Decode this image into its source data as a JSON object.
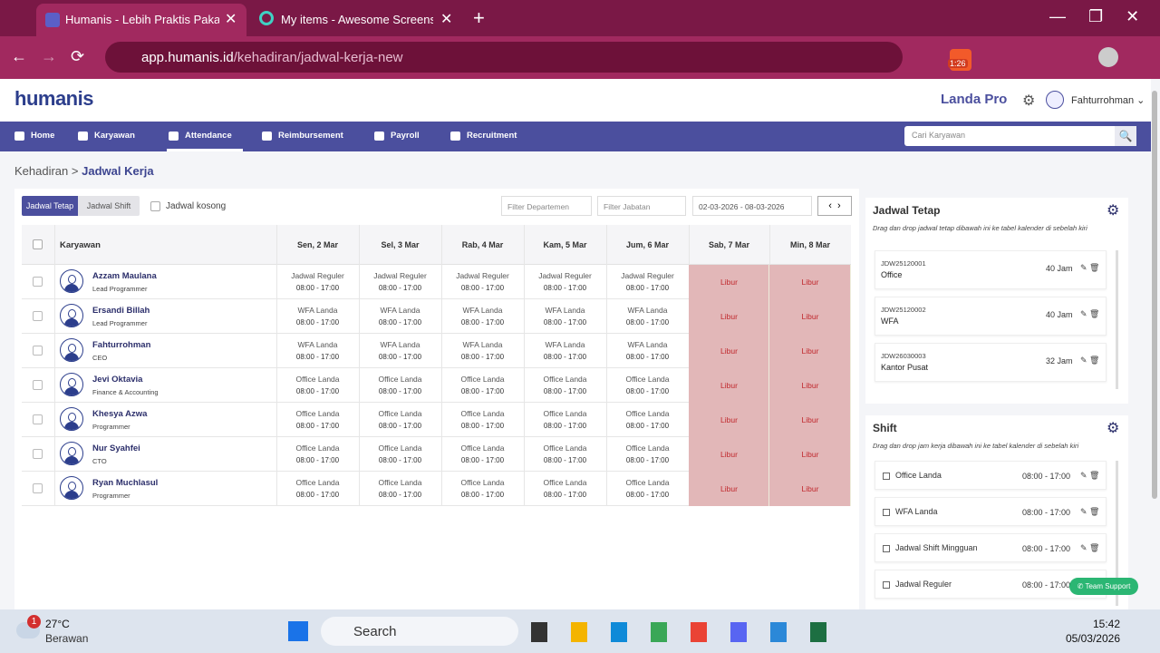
{
  "browser": {
    "tabs": [
      "Humanis - Lebih Praktis Pakai H",
      "My items - Awesome Screensho"
    ],
    "url_host": "app.humanis.id",
    "url_path": "/kehadiran/jadwal-kerja-new",
    "extension_badge": "1:26"
  },
  "header": {
    "logo": "humanis",
    "company": "Landa Pro",
    "user": "Fahturrohman"
  },
  "nav": {
    "items": [
      "Home",
      "Karyawan",
      "Attendance",
      "Reimbursement",
      "Payroll",
      "Recruitment"
    ],
    "search_placeholder": "Cari Karyawan"
  },
  "breadcrumb": [
    "Kehadiran",
    "Jadwal Kerja"
  ],
  "toolbar": {
    "tabs": [
      "Jadwal Tetap",
      "Jadwal Shift"
    ],
    "checkbox": "Jadwal kosong",
    "filters": [
      "Filter Departemen",
      "Filter Jabatan"
    ],
    "date_range": "02-03-2026 - 08-03-2026"
  },
  "table": {
    "columns": [
      "Karyawan",
      "Sen, 2 Mar",
      "Sel, 3 Mar",
      "Rab, 4 Mar",
      "Kam, 5 Mar",
      "Jum, 6 Mar",
      "Sab, 7 Mar",
      "Min, 8 Mar"
    ],
    "rows": [
      {
        "name": "Azzam Maulana",
        "role": "Lead Programmer",
        "cells": [
          {
            "label": "Jadwal Reguler",
            "time": "08:00 - 17:00"
          },
          {
            "label": "Jadwal Reguler",
            "time": "08:00 - 17:00"
          },
          {
            "label": "Jadwal Reguler",
            "time": "08:00 - 17:00"
          },
          {
            "label": "Jadwal Reguler",
            "time": "08:00 - 17:00"
          },
          {
            "label": "Jadwal Reguler",
            "time": "08:00 - 17:00"
          },
          {
            "label": "Libur"
          },
          {
            "label": "Libur"
          }
        ]
      },
      {
        "name": "Ersandi Billah",
        "role": "Lead Programmer",
        "cells": [
          {
            "label": "WFA Landa",
            "time": "08:00 - 17:00"
          },
          {
            "label": "WFA Landa",
            "time": "08:00 - 17:00"
          },
          {
            "label": "WFA Landa",
            "time": "08:00 - 17:00"
          },
          {
            "label": "WFA Landa",
            "time": "08:00 - 17:00"
          },
          {
            "label": "WFA Landa",
            "time": "08:00 - 17:00"
          },
          {
            "label": "Libur"
          },
          {
            "label": "Libur"
          }
        ]
      },
      {
        "name": "Fahturrohman",
        "role": "CEO",
        "cells": [
          {
            "label": "WFA Landa",
            "time": "08:00 - 17:00"
          },
          {
            "label": "WFA Landa",
            "time": "08:00 - 17:00"
          },
          {
            "label": "WFA Landa",
            "time": "08:00 - 17:00"
          },
          {
            "label": "WFA Landa",
            "time": "08:00 - 17:00"
          },
          {
            "label": "WFA Landa",
            "time": "08:00 - 17:00"
          },
          {
            "label": "Libur"
          },
          {
            "label": "Libur"
          }
        ]
      },
      {
        "name": "Jevi Oktavia",
        "role": "Finance & Accounting",
        "cells": [
          {
            "label": "Office Landa",
            "time": "08:00 - 17:00"
          },
          {
            "label": "Office Landa",
            "time": "08:00 - 17:00"
          },
          {
            "label": "Office Landa",
            "time": "08:00 - 17:00"
          },
          {
            "label": "Office Landa",
            "time": "08:00 - 17:00"
          },
          {
            "label": "Office Landa",
            "time": "08:00 - 17:00"
          },
          {
            "label": "Libur"
          },
          {
            "label": "Libur"
          }
        ]
      },
      {
        "name": "Khesya Azwa",
        "role": "Programmer",
        "cells": [
          {
            "label": "Office Landa",
            "time": "08:00 - 17:00"
          },
          {
            "label": "Office Landa",
            "time": "08:00 - 17:00"
          },
          {
            "label": "Office Landa",
            "time": "08:00 - 17:00"
          },
          {
            "label": "Office Landa",
            "time": "08:00 - 17:00"
          },
          {
            "label": "Office Landa",
            "time": "08:00 - 17:00"
          },
          {
            "label": "Libur"
          },
          {
            "label": "Libur"
          }
        ]
      },
      {
        "name": "Nur Syahfei",
        "role": "CTO",
        "cells": [
          {
            "label": "Office Landa",
            "time": "08:00 - 17:00"
          },
          {
            "label": "Office Landa",
            "time": "08:00 - 17:00"
          },
          {
            "label": "Office Landa",
            "time": "08:00 - 17:00"
          },
          {
            "label": "Office Landa",
            "time": "08:00 - 17:00"
          },
          {
            "label": "Office Landa",
            "time": "08:00 - 17:00"
          },
          {
            "label": "Libur"
          },
          {
            "label": "Libur"
          }
        ]
      },
      {
        "name": "Ryan Muchlasul",
        "role": "Programmer",
        "cells": [
          {
            "label": "Office Landa",
            "time": "08:00 - 17:00"
          },
          {
            "label": "Office Landa",
            "time": "08:00 - 17:00"
          },
          {
            "label": "Office Landa",
            "time": "08:00 - 17:00"
          },
          {
            "label": "Office Landa",
            "time": "08:00 - 17:00"
          },
          {
            "label": "Office Landa",
            "time": "08:00 - 17:00"
          },
          {
            "label": "Libur"
          },
          {
            "label": "Libur"
          }
        ]
      }
    ]
  },
  "panels": {
    "fixed": {
      "title": "Jadwal Tetap",
      "hint": "Drag dan drop jadwal tetap dibawah ini ke tabel kalender di sebelah kiri",
      "items": [
        {
          "code": "JDW25120001",
          "name": "Office",
          "hours": "40 Jam"
        },
        {
          "code": "JDW25120002",
          "name": "WFA",
          "hours": "40 Jam"
        },
        {
          "code": "JDW26030003",
          "name": "Kantor Pusat",
          "hours": "32 Jam"
        }
      ]
    },
    "shift": {
      "title": "Shift",
      "hint": "Drag dan drop jam kerja dibawah ini ke tabel kalender di sebelah kiri",
      "items": [
        {
          "name": "Office Landa",
          "time": "08:00 - 17:00"
        },
        {
          "name": "WFA Landa",
          "time": "08:00 - 17:00"
        },
        {
          "name": "Jadwal Shift Mingguan",
          "time": "08:00 - 17:00"
        },
        {
          "name": "Jadwal Reguler",
          "time": "08:00 - 17:00"
        }
      ]
    }
  },
  "support": "Team Support",
  "taskbar": {
    "temperature": "27°C",
    "weather": "Berawan",
    "weather_badge": "1",
    "search": "Search",
    "time": "15:42",
    "date": "05/03/2026"
  }
}
